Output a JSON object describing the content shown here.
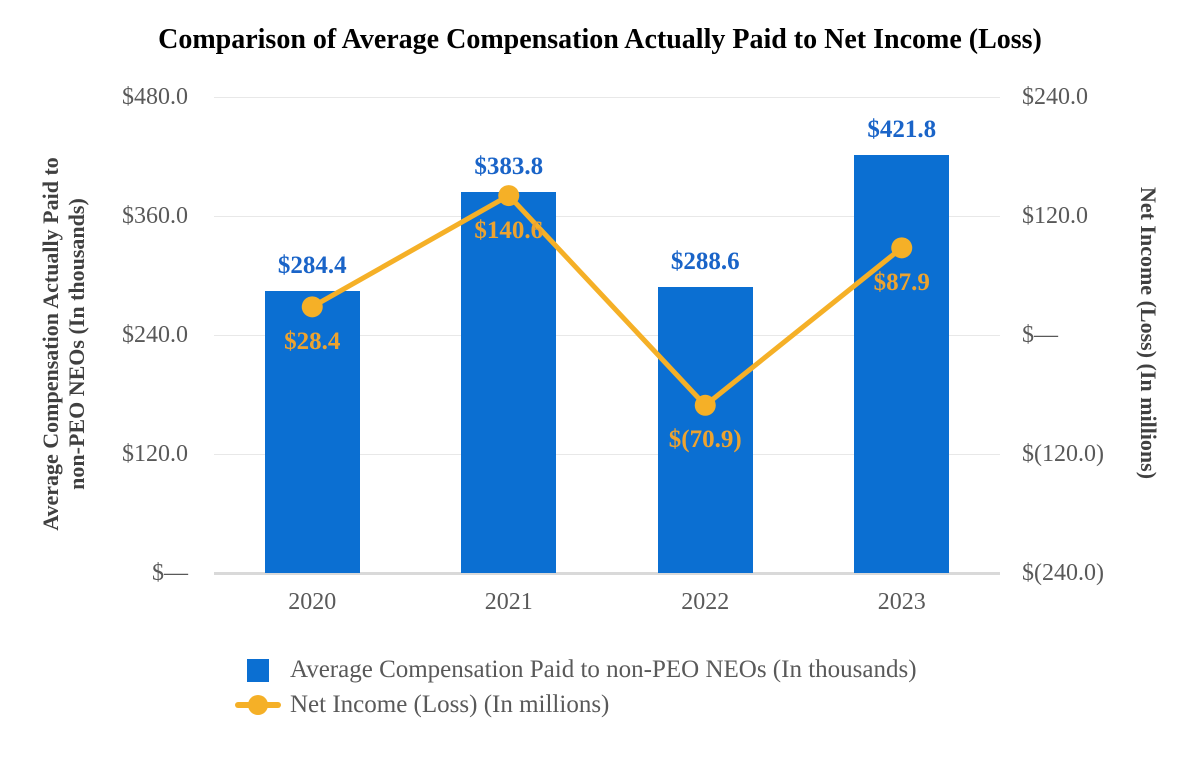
{
  "title": "Comparison of Average Compensation Actually Paid to Net Income (Loss)",
  "colors": {
    "bar": "#0b6fd2",
    "bar_label": "#1a64c8",
    "line": "#f5b027",
    "line_label": "#eda32f",
    "axis_text": "#595959",
    "axis_title_text": "#404040",
    "gridline": "#e8e8e8",
    "baseline": "#d9d9d9",
    "title_text": "#000000"
  },
  "chart_data": {
    "type": "bar+line combo",
    "title": "Comparison of Average Compensation Actually Paid to Net Income (Loss)",
    "categories": [
      "2020",
      "2021",
      "2022",
      "2023"
    ],
    "series": [
      {
        "name": "Average Compensation Paid to non-PEO NEOs (In thousands)",
        "type": "bar",
        "axis": "left",
        "values": [
          284.4,
          383.8,
          288.6,
          421.8
        ],
        "labels": [
          "$284.4",
          "$383.8",
          "$288.6",
          "$421.8"
        ]
      },
      {
        "name": "Net Income (Loss) (In millions)",
        "type": "line",
        "axis": "right",
        "values": [
          28.4,
          140.6,
          -70.9,
          87.9
        ],
        "labels": [
          "$28.4",
          "$140.6",
          "$(70.9)",
          "$87.9"
        ]
      }
    ],
    "left_axis": {
      "title": "Average Compensation Actually Paid to\nnon-PEO NEOs (In thousands)",
      "range": [
        0,
        480
      ],
      "ticks": [
        {
          "label": "$480.0",
          "value": 480
        },
        {
          "label": "$360.0",
          "value": 360
        },
        {
          "label": "$240.0",
          "value": 240
        },
        {
          "label": "$120.0",
          "value": 120
        },
        {
          "label": "$—",
          "value": 0
        }
      ]
    },
    "right_axis": {
      "title": "Net Income (Loss) (In millions)",
      "range": [
        -240,
        240
      ],
      "ticks": [
        {
          "label": "$240.0",
          "value": 240
        },
        {
          "label": "$120.0",
          "value": 120
        },
        {
          "label": "$—",
          "value": 0
        },
        {
          "label": "$(120.0)",
          "value": -120
        },
        {
          "label": "$(240.0)",
          "value": -240
        }
      ]
    },
    "gridlines": true,
    "legend_position": "bottom-left",
    "legend": [
      {
        "label": "Average Compensation Paid to non-PEO NEOs (In thousands)",
        "marker": "square"
      },
      {
        "label": "Net Income (Loss) (In millions)",
        "marker": "line-dot"
      }
    ]
  }
}
